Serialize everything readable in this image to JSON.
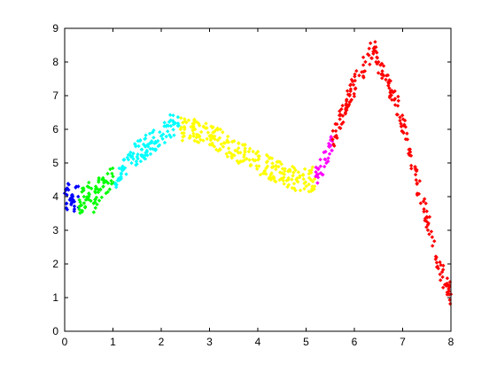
{
  "chart_data": {
    "type": "scatter",
    "title": "",
    "xlabel": "",
    "ylabel": "",
    "xlim": [
      0,
      8
    ],
    "ylim": [
      0,
      9
    ],
    "x_ticks": [
      0,
      1,
      2,
      3,
      4,
      5,
      6,
      7,
      8
    ],
    "y_ticks": [
      0,
      1,
      2,
      3,
      4,
      5,
      6,
      7,
      8,
      9
    ],
    "grid": false,
    "legend": "none",
    "series": [
      {
        "color": "#0000ff",
        "x_range": [
          0.0,
          0.3
        ],
        "points": [
          [
            0.0,
            4.1
          ],
          [
            0.04,
            3.8
          ],
          [
            0.08,
            4.2
          ],
          [
            0.12,
            3.9
          ],
          [
            0.16,
            4.05
          ],
          [
            0.2,
            3.85
          ],
          [
            0.24,
            4.3
          ],
          [
            0.28,
            4.0
          ]
        ]
      },
      {
        "color": "#00ff00",
        "x_range": [
          0.3,
          1.05
        ],
        "points": [
          [
            0.3,
            3.7
          ],
          [
            0.4,
            4.0
          ],
          [
            0.5,
            4.1
          ],
          [
            0.6,
            3.8
          ],
          [
            0.7,
            4.2
          ],
          [
            0.8,
            4.3
          ],
          [
            0.9,
            4.4
          ],
          [
            1.0,
            4.6
          ]
        ]
      },
      {
        "color": "#00ffff",
        "x_range": [
          1.05,
          2.4
        ],
        "points": [
          [
            1.05,
            4.4
          ],
          [
            1.2,
            4.9
          ],
          [
            1.4,
            5.2
          ],
          [
            1.6,
            5.4
          ],
          [
            1.8,
            5.6
          ],
          [
            2.0,
            5.8
          ],
          [
            2.2,
            6.1
          ],
          [
            2.35,
            6.1
          ]
        ]
      },
      {
        "color": "#ffff00",
        "x_range": [
          2.4,
          5.2
        ],
        "points": [
          [
            2.4,
            6.0
          ],
          [
            2.7,
            6.0
          ],
          [
            3.0,
            5.8
          ],
          [
            3.3,
            5.6
          ],
          [
            3.6,
            5.3
          ],
          [
            3.9,
            5.1
          ],
          [
            4.2,
            4.9
          ],
          [
            4.5,
            4.7
          ],
          [
            4.8,
            4.5
          ],
          [
            5.1,
            4.5
          ]
        ]
      },
      {
        "color": "#ff00ff",
        "x_range": [
          5.2,
          5.55
        ],
        "points": [
          [
            5.2,
            4.6
          ],
          [
            5.3,
            4.9
          ],
          [
            5.4,
            5.1
          ],
          [
            5.5,
            5.5
          ]
        ]
      },
      {
        "color": "#ff0000",
        "x_range": [
          5.55,
          8.0
        ],
        "points": [
          [
            5.55,
            5.7
          ],
          [
            5.7,
            6.3
          ],
          [
            5.9,
            7.0
          ],
          [
            6.1,
            7.6
          ],
          [
            6.3,
            8.2
          ],
          [
            6.4,
            8.4
          ],
          [
            6.5,
            8.0
          ],
          [
            6.7,
            7.4
          ],
          [
            6.9,
            6.7
          ],
          [
            7.1,
            5.7
          ],
          [
            7.3,
            4.4
          ],
          [
            7.5,
            3.4
          ],
          [
            7.7,
            2.2
          ],
          [
            7.9,
            1.4
          ],
          [
            8.0,
            1.1
          ]
        ]
      }
    ]
  }
}
